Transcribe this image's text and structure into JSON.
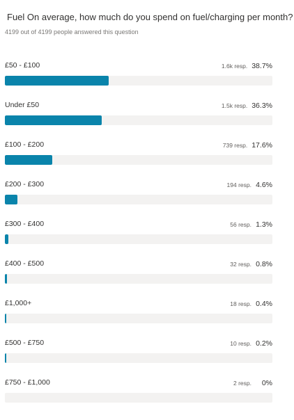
{
  "header": {
    "title": "Fuel On average, how much do you spend on fuel/charging per month?",
    "subtitle": "4199 out of 4199 people answered this question"
  },
  "colors": {
    "bar_fill": "#0a84ab",
    "bar_track": "#f3f2f1"
  },
  "options": [
    {
      "label": "£50 - £100",
      "count": "1.6k resp.",
      "percent_text": "38.7%",
      "percent": 38.7
    },
    {
      "label": "Under £50",
      "count": "1.5k resp.",
      "percent_text": "36.3%",
      "percent": 36.3
    },
    {
      "label": "£100 - £200",
      "count": "739 resp.",
      "percent_text": "17.6%",
      "percent": 17.6
    },
    {
      "label": "£200 - £300",
      "count": "194 resp.",
      "percent_text": "4.6%",
      "percent": 4.6
    },
    {
      "label": "£300 - £400",
      "count": "56 resp.",
      "percent_text": "1.3%",
      "percent": 1.3
    },
    {
      "label": "£400 - £500",
      "count": "32 resp.",
      "percent_text": "0.8%",
      "percent": 0.8
    },
    {
      "label": "£1,000+",
      "count": "18 resp.",
      "percent_text": "0.4%",
      "percent": 0.4
    },
    {
      "label": "£500 - £750",
      "count": "10 resp.",
      "percent_text": "0.2%",
      "percent": 0.2
    },
    {
      "label": "£750 - £1,000",
      "count": "2 resp.",
      "percent_text": "0%",
      "percent": 0
    }
  ]
}
